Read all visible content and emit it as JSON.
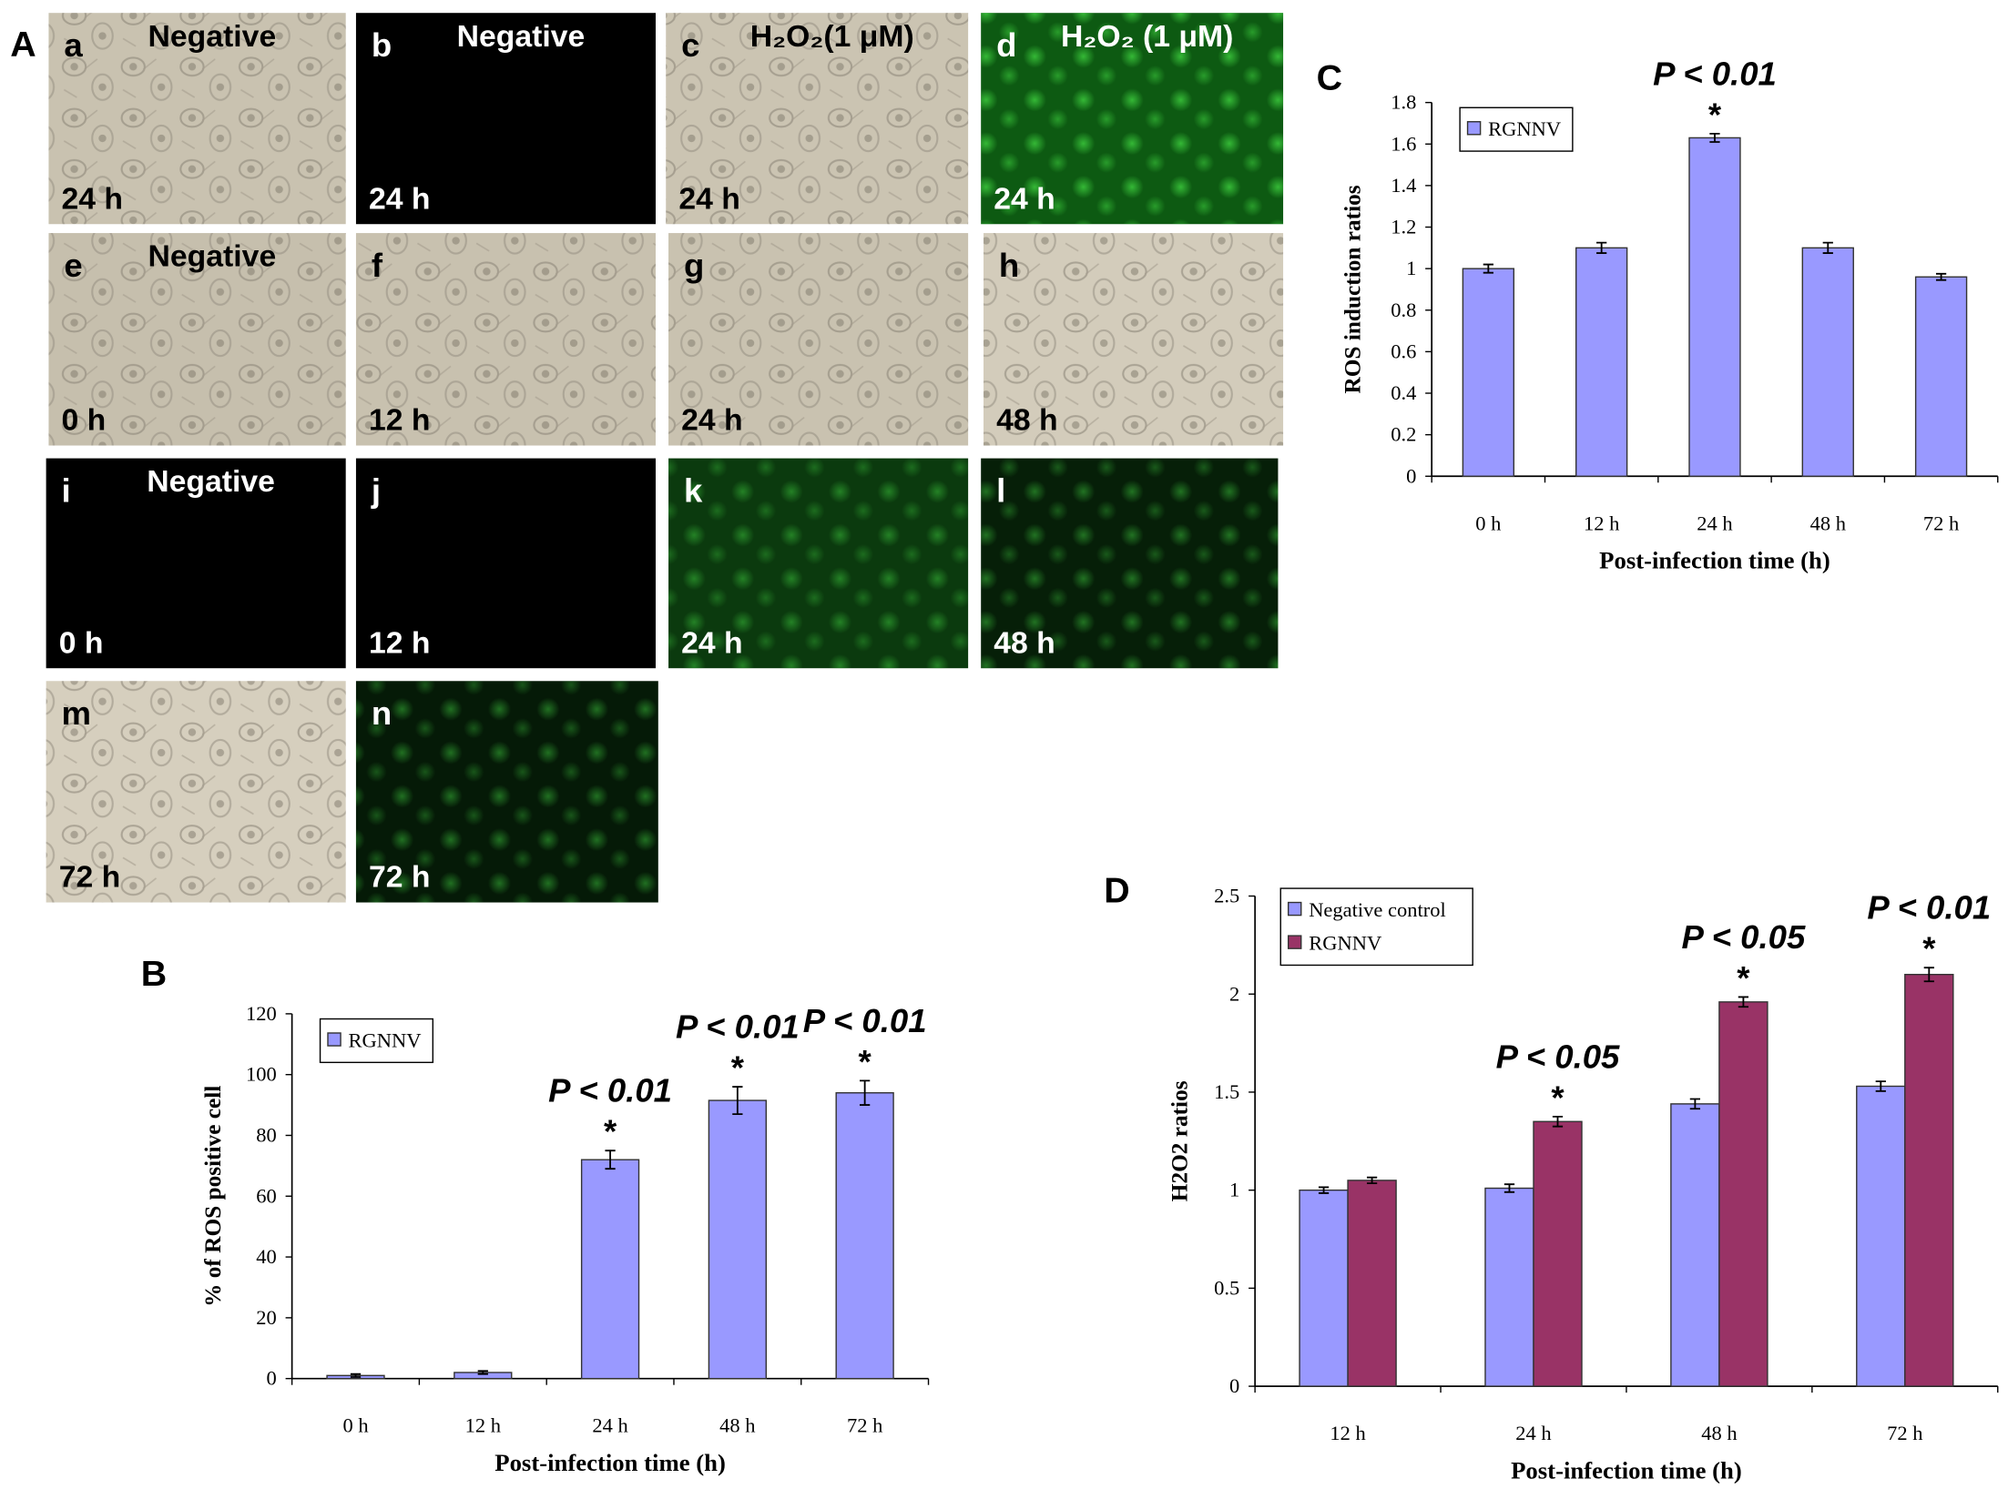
{
  "panel_a": {
    "label": "A",
    "images": [
      {
        "letter": "a",
        "condition": "Negative",
        "time": "24 h",
        "color": "#c9c2b0"
      },
      {
        "letter": "b",
        "condition": "Negative",
        "time": "24 h",
        "color": "#000000"
      },
      {
        "letter": "c",
        "condition": "H₂O₂(1 μM)",
        "time": "24 h",
        "color": "#cbc4b2"
      },
      {
        "letter": "d",
        "condition": "H₂O₂ (1 μM)",
        "time": "24 h",
        "color": "#0d5a12"
      },
      {
        "letter": "e",
        "condition": "Negative",
        "time": "0 h",
        "color": "#c6bfad"
      },
      {
        "letter": "f",
        "condition": null,
        "time": "12 h",
        "color": "#c8c1af"
      },
      {
        "letter": "g",
        "condition": null,
        "time": "24 h",
        "color": "#c9c2b0"
      },
      {
        "letter": "h",
        "condition": null,
        "time": "48 h",
        "color": "#d3ccbb"
      },
      {
        "letter": "i",
        "condition": "Negative",
        "time": "0 h",
        "color": "#000000"
      },
      {
        "letter": "j",
        "condition": null,
        "time": "12 h",
        "color": "#000000"
      },
      {
        "letter": "k",
        "condition": null,
        "time": "24 h",
        "color": "#0b3a0e"
      },
      {
        "letter": "l",
        "condition": null,
        "time": "48 h",
        "color": "#061f08"
      },
      {
        "letter": "m",
        "condition": null,
        "time": "72 h",
        "color": "#d6cfbe"
      },
      {
        "letter": "n",
        "condition": null,
        "time": "72 h",
        "color": "#051a07"
      }
    ]
  },
  "chart_data": [
    {
      "type": "bar",
      "label": "B",
      "ylabel": "% of ROS positive cell",
      "xlabel": "Post-infection time (h)",
      "categories": [
        "0 h",
        "12 h",
        "24 h",
        "48 h",
        "72 h"
      ],
      "series": [
        {
          "name": "RGNNV",
          "color": "#9999ff",
          "values": [
            1,
            2,
            72,
            91.5,
            94
          ],
          "errors": [
            0.5,
            0.5,
            3,
            4.5,
            4
          ],
          "annotations": [
            null,
            null,
            "P < 0.01",
            "P < 0.01",
            "P < 0.01"
          ],
          "stars": [
            null,
            null,
            "*",
            "*",
            "*"
          ]
        }
      ],
      "ylim": [
        0,
        120
      ],
      "yticks": [
        0,
        20,
        40,
        60,
        80,
        100,
        120
      ],
      "legend": "upper left"
    },
    {
      "type": "bar",
      "label": "C",
      "ylabel": "ROS induction ratios",
      "xlabel": "Post-infection time (h)",
      "categories": [
        "0 h",
        "12 h",
        "24 h",
        "48 h",
        "72 h"
      ],
      "series": [
        {
          "name": "RGNNV",
          "color": "#9999ff",
          "values": [
            1,
            1.1,
            1.63,
            1.1,
            0.96
          ],
          "errors": [
            0.02,
            0.025,
            0.02,
            0.025,
            0.015
          ],
          "annotations": [
            null,
            null,
            "P < 0.01",
            null,
            null
          ],
          "stars": [
            null,
            null,
            "*",
            null,
            null
          ]
        }
      ],
      "ylim": [
        0,
        1.8
      ],
      "yticks": [
        0,
        0.2,
        0.4,
        0.6,
        0.8,
        1,
        1.2,
        1.4,
        1.6,
        1.8
      ],
      "legend": "upper left"
    },
    {
      "type": "bar",
      "label": "D",
      "ylabel": "H2O2 ratios",
      "xlabel": "Post-infection time (h)",
      "categories": [
        "12 h",
        "24 h",
        "48 h",
        "72 h"
      ],
      "series": [
        {
          "name": "Negative control",
          "color": "#9999ff",
          "values": [
            1,
            1.01,
            1.44,
            1.53
          ],
          "errors": [
            0.015,
            0.02,
            0.025,
            0.025
          ],
          "annotations": [
            null,
            null,
            null,
            null
          ],
          "stars": [
            null,
            null,
            null,
            null
          ]
        },
        {
          "name": "RGNNV",
          "color": "#993366",
          "values": [
            1.05,
            1.35,
            1.96,
            2.1
          ],
          "errors": [
            0.015,
            0.025,
            0.025,
            0.035
          ],
          "annotations": [
            null,
            "P < 0.05",
            "P < 0.05",
            "P < 0.01"
          ],
          "stars": [
            null,
            "*",
            "*",
            "*"
          ]
        }
      ],
      "ylim": [
        0,
        2.5
      ],
      "yticks": [
        0,
        0.5,
        1,
        1.5,
        2,
        2.5
      ],
      "legend": "upper left"
    }
  ]
}
